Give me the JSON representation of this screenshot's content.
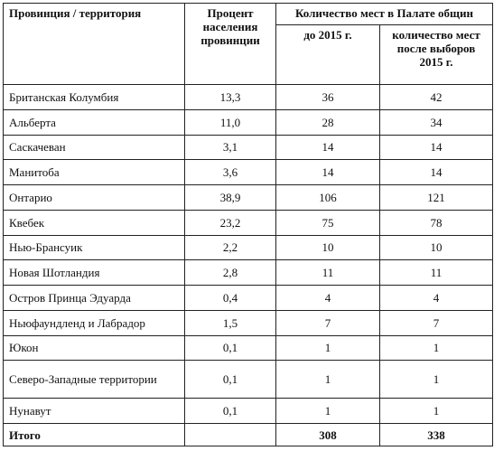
{
  "header": {
    "province": "Провинция / территория",
    "population_pct": "Процент населения провинции",
    "seats_group": "Количество мест в Палате общин",
    "before_2015": "до 2015 г.",
    "after_2015": "количество мест после выборов 2015 г."
  },
  "rows": [
    {
      "name": "Британская Колумбия",
      "pct": "13,3",
      "before": "36",
      "after": "42"
    },
    {
      "name": "Альберта",
      "pct": "11,0",
      "before": "28",
      "after": "34"
    },
    {
      "name": "Саскачеван",
      "pct": "3,1",
      "before": "14",
      "after": "14"
    },
    {
      "name": "Манитоба",
      "pct": "3,6",
      "before": "14",
      "after": "14"
    },
    {
      "name": "Онтарио",
      "pct": "38,9",
      "before": "106",
      "after": "121"
    },
    {
      "name": "Квебек",
      "pct": "23,2",
      "before": "75",
      "after": "78"
    },
    {
      "name": "Нью-Брансуик",
      "pct": "2,2",
      "before": "10",
      "after": "10"
    },
    {
      "name": "Новая Шотландия",
      "pct": "2,8",
      "before": "11",
      "after": "11"
    },
    {
      "name": "Остров Принца Эдуарда",
      "pct": "0,4",
      "before": "4",
      "after": "4"
    },
    {
      "name": "Ньюфаундленд и Лабрадор",
      "pct": "1,5",
      "before": "7",
      "after": "7"
    },
    {
      "name": "Юкон",
      "pct": "0,1",
      "before": "1",
      "after": "1"
    },
    {
      "name": "Северо-Западные территории",
      "pct": "0,1",
      "before": "1",
      "after": "1"
    },
    {
      "name": "Нунавут",
      "pct": "0,1",
      "before": "1",
      "after": "1"
    }
  ],
  "total": {
    "name": "Итого",
    "pct": "",
    "before": "308",
    "after": "338"
  }
}
